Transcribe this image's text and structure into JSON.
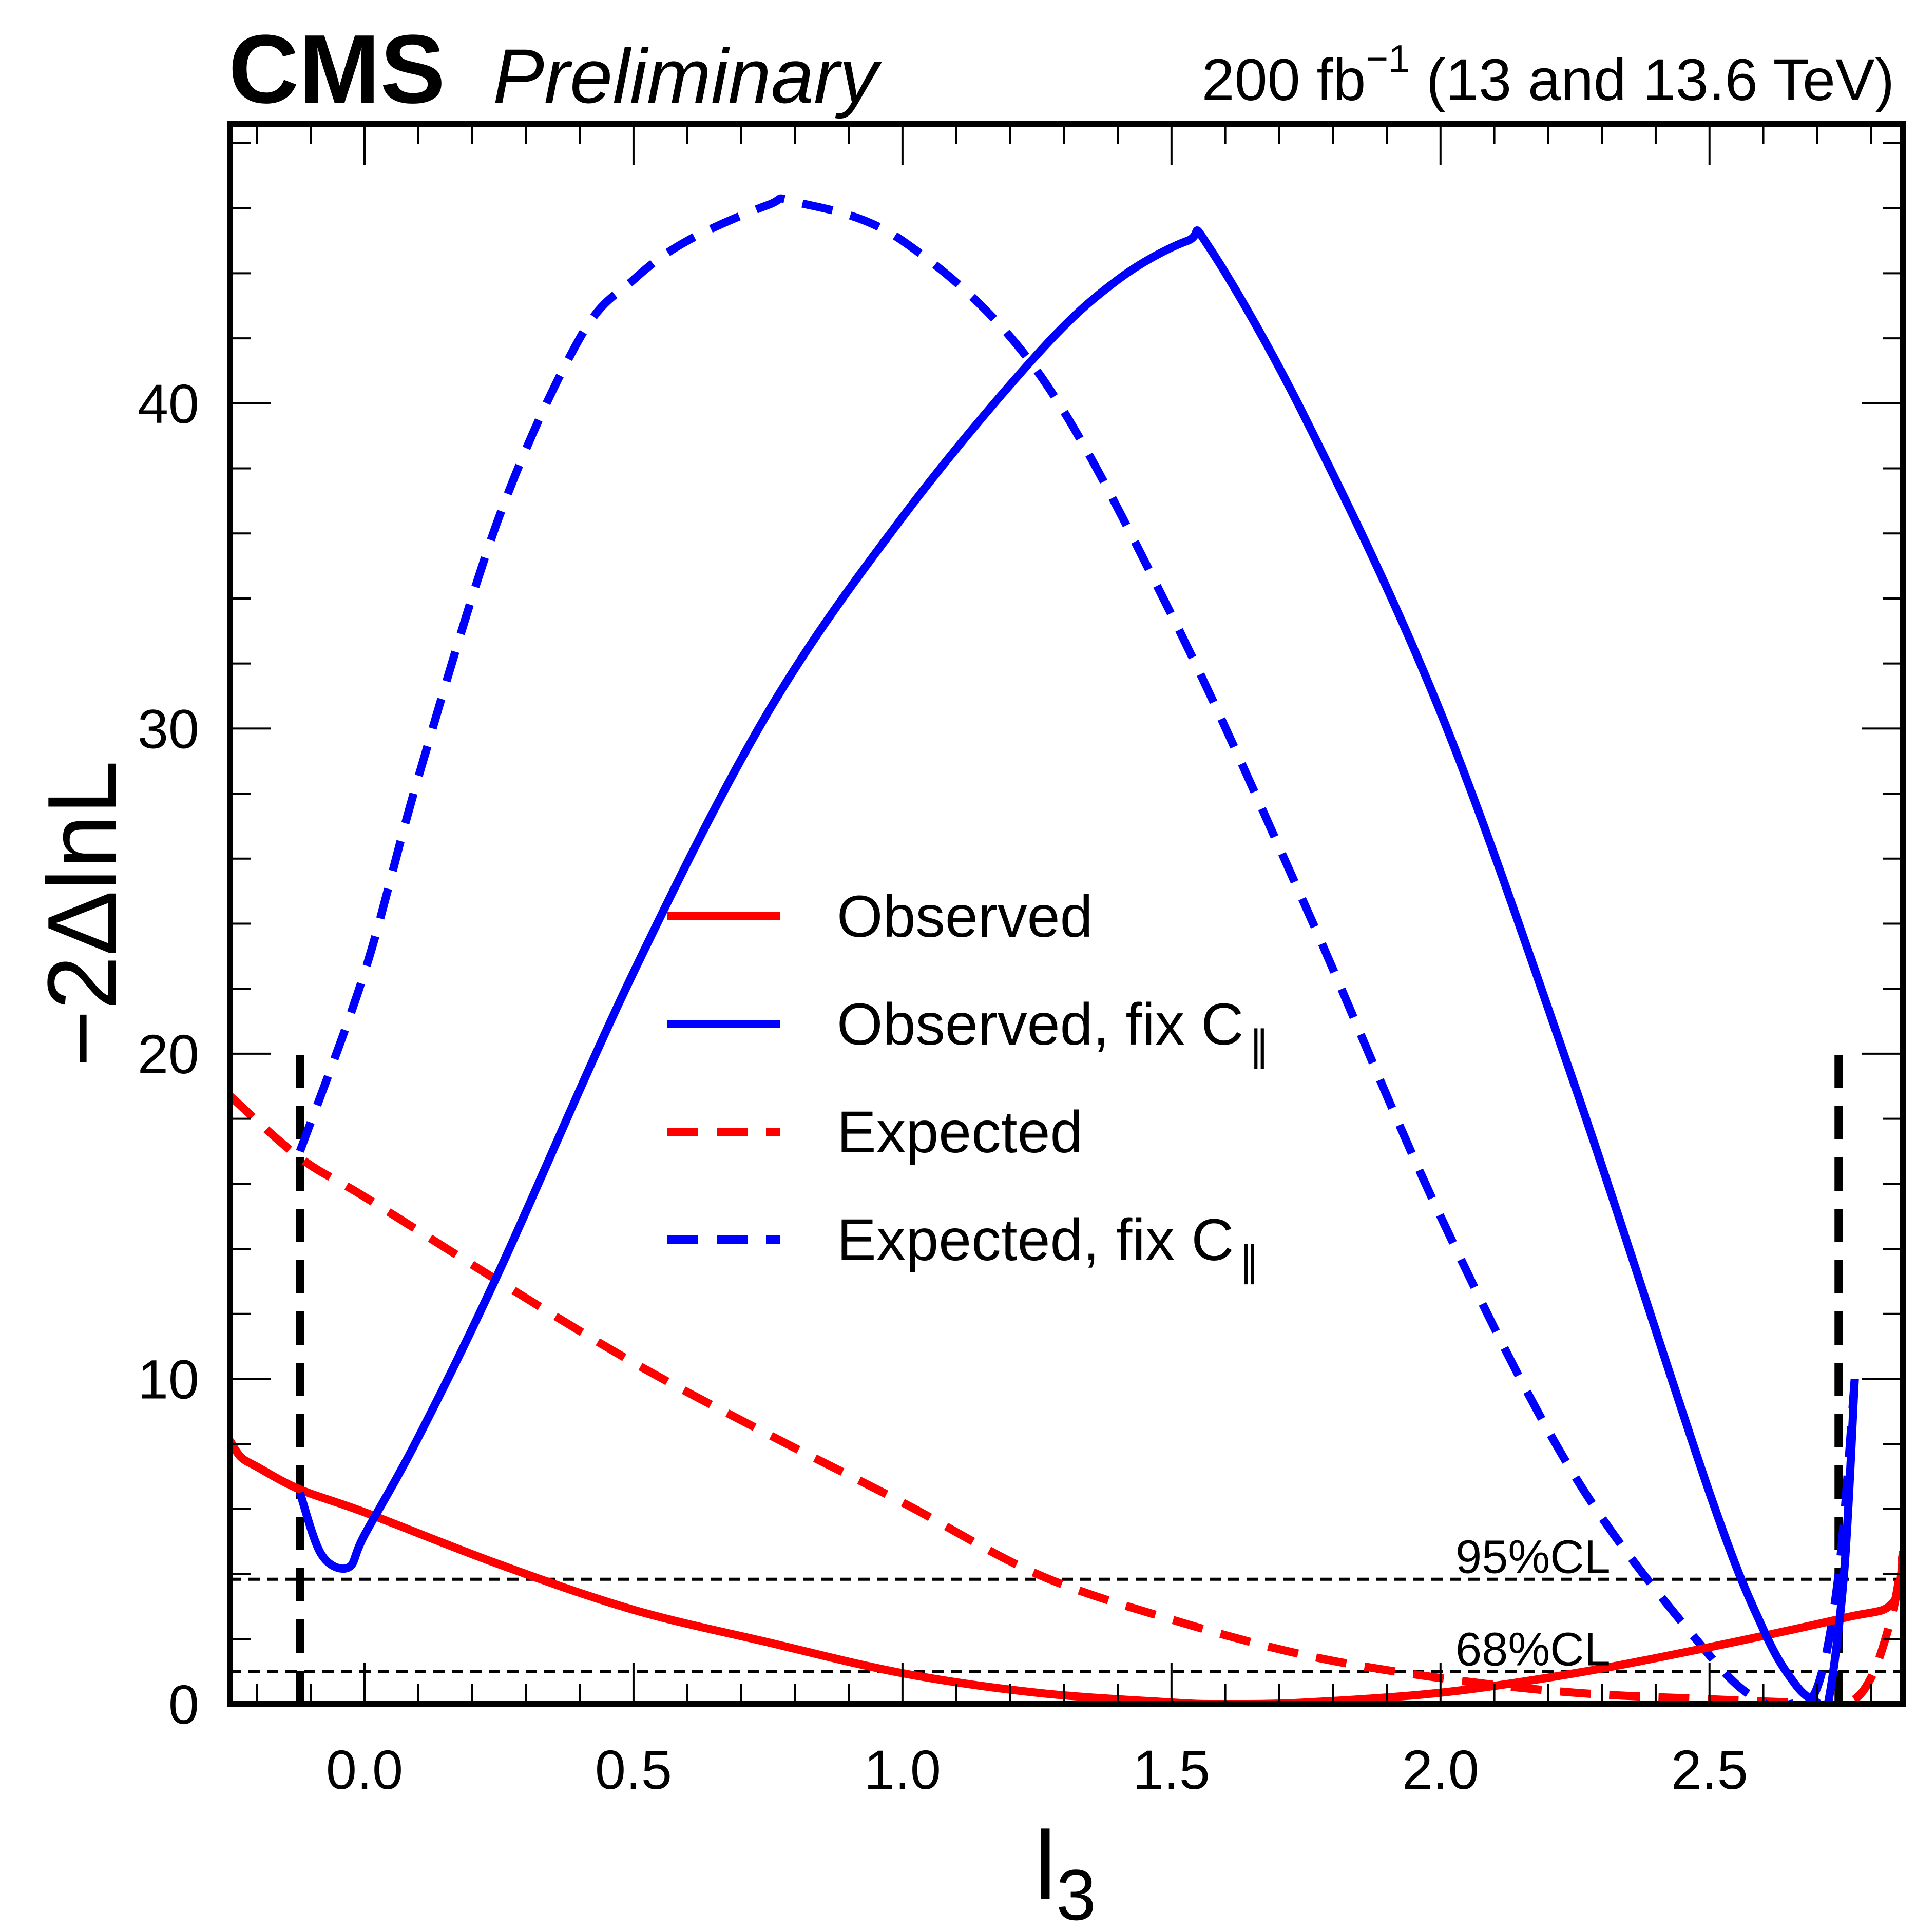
{
  "header": {
    "experiment": "CMS",
    "status": "Preliminary",
    "luminosity": "200 fb",
    "luminosity_exponent": "−1",
    "energy": "(13 and 13.6 TeV)"
  },
  "chart_data": {
    "type": "line",
    "title": "",
    "xlabel": "l",
    "xlabel_subscript": "3",
    "ylabel": "−2ΔlnL",
    "xlim": [
      -0.25,
      2.86
    ],
    "ylim": [
      0,
      48.6
    ],
    "x_major_ticks": [
      0.0,
      0.5,
      1.0,
      1.5,
      2.0,
      2.5
    ],
    "x_tick_labels": [
      "0.0",
      "0.5",
      "1.0",
      "1.5",
      "2.0",
      "2.5"
    ],
    "x_minor_step": 0.1,
    "y_major_ticks": [
      0,
      10,
      20,
      30,
      40
    ],
    "y_tick_labels": [
      "0",
      "10",
      "20",
      "30",
      "40"
    ],
    "y_minor_step": 2,
    "grid": false,
    "legend_position": "center",
    "series": [
      {
        "name": "Observed",
        "color": "#ff0000",
        "style": "solid",
        "x": [
          -0.25,
          -0.23,
          -0.2,
          -0.12,
          0.0,
          0.25,
          0.5,
          0.75,
          1.0,
          1.25,
          1.5,
          1.6,
          1.75,
          2.0,
          2.25,
          2.5,
          2.75,
          2.84,
          2.86
        ],
        "y": [
          8.1,
          7.6,
          7.3,
          6.6,
          5.9,
          4.3,
          2.9,
          1.9,
          0.95,
          0.35,
          0.05,
          0.0,
          0.05,
          0.35,
          0.95,
          1.75,
          2.65,
          3.1,
          4.6
        ]
      },
      {
        "name": "Observed, fix C∥",
        "color": "#0000ff",
        "style": "solid",
        "x": [
          -0.12,
          -0.08,
          -0.03,
          0.0,
          0.1,
          0.25,
          0.5,
          0.75,
          1.0,
          1.25,
          1.4,
          1.53,
          1.57,
          1.75,
          2.0,
          2.25,
          2.5,
          2.6,
          2.66,
          2.7,
          2.72,
          2.75,
          2.77
        ],
        "y": [
          6.5,
          4.6,
          4.2,
          5.2,
          8.2,
          13.3,
          22.5,
          30.5,
          36.5,
          41.5,
          43.8,
          45.0,
          44.8,
          39.5,
          30.5,
          19.0,
          6.5,
          2.3,
          0.6,
          0.05,
          0.0,
          4.0,
          10.0
        ]
      },
      {
        "name": "Expected",
        "color": "#ff0000",
        "style": "dashed",
        "x": [
          -0.25,
          -0.12,
          0.0,
          0.25,
          0.5,
          0.75,
          1.0,
          1.25,
          1.5,
          1.75,
          2.0,
          2.25,
          2.5,
          2.65,
          2.75,
          2.8,
          2.84,
          2.86
        ],
        "y": [
          18.7,
          16.8,
          15.6,
          13.0,
          10.5,
          8.3,
          6.2,
          4.0,
          2.6,
          1.5,
          0.8,
          0.35,
          0.15,
          0.05,
          0.0,
          0.8,
          2.8,
          4.7
        ]
      },
      {
        "name": "Expected, fix C∥",
        "color": "#0000ff",
        "style": "dashed",
        "x": [
          -0.12,
          0.0,
          0.1,
          0.25,
          0.4,
          0.5,
          0.6,
          0.75,
          0.8,
          1.0,
          1.25,
          1.5,
          1.75,
          2.0,
          2.25,
          2.5,
          2.6,
          2.65,
          2.7,
          2.74,
          2.77
        ],
        "y": [
          17.0,
          22.5,
          28.5,
          36.5,
          42.0,
          43.8,
          45.0,
          46.1,
          46.2,
          45.0,
          41.0,
          33.5,
          24.5,
          15.0,
          7.0,
          1.5,
          0.05,
          0.0,
          0.5,
          4.0,
          10.0
        ]
      }
    ],
    "reference_lines": {
      "horizontal": [
        {
          "label": "95%CL",
          "y": 3.84
        },
        {
          "label": "68%CL",
          "y": 1.0
        }
      ],
      "vertical": [
        {
          "x": -0.12,
          "y_range": [
            0,
            20
          ]
        },
        {
          "x": 2.74,
          "y_range": [
            0,
            20
          ]
        }
      ]
    }
  },
  "legend": {
    "items": [
      {
        "label": "Observed",
        "sub": "",
        "color": "#ff0000",
        "style": "solid"
      },
      {
        "label": "Observed, fix C",
        "sub": "∥",
        "color": "#0000ff",
        "style": "solid"
      },
      {
        "label": "Expected",
        "sub": "",
        "color": "#ff0000",
        "style": "dashed"
      },
      {
        "label": "Expected, fix C",
        "sub": "∥",
        "color": "#0000ff",
        "style": "dashed"
      }
    ]
  }
}
